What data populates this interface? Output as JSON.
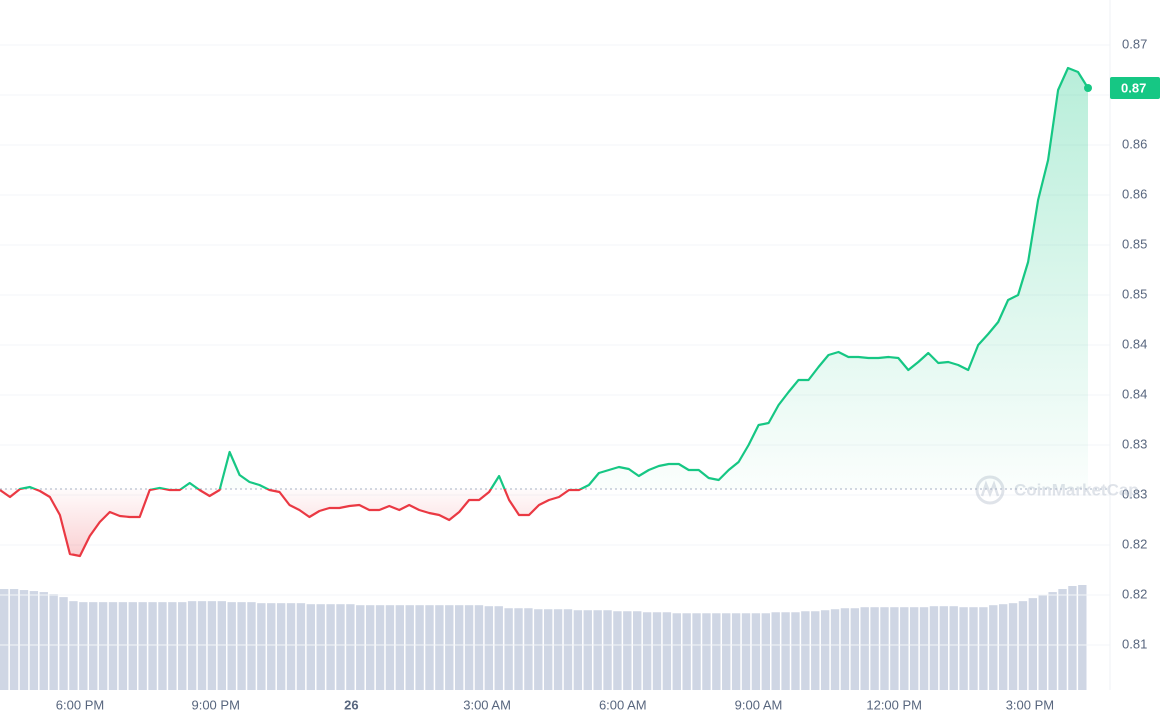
{
  "chart_data": {
    "type": "line",
    "watermark": "CoinMarketCap",
    "last_price_label": "0.87",
    "x_labels": [
      "6:00 PM",
      "9:00 PM",
      "26",
      "3:00 AM",
      "6:00 AM",
      "9:00 AM",
      "12:00 PM",
      "3:00 PM"
    ],
    "baseline": 0.8256,
    "up_color": "#16c784",
    "down_color": "#ea3943",
    "ylim": [
      0.8055,
      0.8745
    ],
    "yticks": [
      0.81,
      {
        "value": 0.815,
        "label": "0.82"
      },
      0.82,
      {
        "value": 0.825,
        "label": "0.83"
      },
      0.83,
      {
        "value": 0.835,
        "label": "0.84"
      },
      0.84,
      {
        "value": 0.845,
        "label": "0.85"
      },
      0.85,
      {
        "value": 0.855,
        "label": "0.86"
      },
      0.86,
      {
        "value": 0.865,
        "label": "0.87"
      },
      0.87
    ],
    "grid": true,
    "values": [
      0.8255,
      0.8248,
      0.8256,
      0.8258,
      0.8254,
      0.8248,
      0.823,
      0.8191,
      0.8189,
      0.8209,
      0.8223,
      0.8233,
      0.8229,
      0.8228,
      0.8228,
      0.8255,
      0.8257,
      0.8255,
      0.8255,
      0.8262,
      0.8255,
      0.8249,
      0.8255,
      0.8293,
      0.827,
      0.8263,
      0.826,
      0.8255,
      0.8253,
      0.824,
      0.8235,
      0.8228,
      0.8234,
      0.8237,
      0.8237,
      0.8239,
      0.824,
      0.8235,
      0.8235,
      0.8239,
      0.8235,
      0.824,
      0.8235,
      0.8232,
      0.823,
      0.8225,
      0.8233,
      0.8245,
      0.8245,
      0.8253,
      0.8269,
      0.8245,
      0.823,
      0.823,
      0.824,
      0.8245,
      0.8248,
      0.8255,
      0.8255,
      0.826,
      0.8272,
      0.8275,
      0.8278,
      0.8276,
      0.8269,
      0.8275,
      0.8279,
      0.8281,
      0.8281,
      0.8275,
      0.8275,
      0.8267,
      0.8265,
      0.8275,
      0.8283,
      0.83,
      0.832,
      0.8322,
      0.834,
      0.8353,
      0.8365,
      0.8365,
      0.8378,
      0.839,
      0.8393,
      0.8388,
      0.8388,
      0.8387,
      0.8387,
      0.8388,
      0.8387,
      0.8375,
      0.8383,
      0.8392,
      0.8382,
      0.8383,
      0.838,
      0.8375,
      0.84,
      0.8411,
      0.8423,
      0.8445,
      0.845,
      0.8483,
      0.8545,
      0.8585,
      0.8655,
      0.8677,
      0.8673,
      0.8657
    ],
    "volume": {
      "color": "#cfd6e4",
      "values": [
        100,
        100,
        99,
        98,
        97,
        95,
        92,
        88,
        87,
        87,
        87,
        87,
        87,
        87,
        87,
        87,
        87,
        87,
        87,
        88,
        88,
        88,
        88,
        87,
        87,
        87,
        86,
        86,
        86,
        86,
        86,
        85,
        85,
        85,
        85,
        85,
        84,
        84,
        84,
        84,
        84,
        84,
        84,
        84,
        84,
        84,
        84,
        84,
        84,
        83,
        83,
        81,
        81,
        81,
        80,
        80,
        80,
        80,
        79,
        79,
        79,
        79,
        78,
        78,
        78,
        77,
        77,
        77,
        76,
        76,
        76,
        76,
        76,
        76,
        76,
        76,
        76,
        76,
        77,
        77,
        77,
        78,
        78,
        79,
        80,
        81,
        81,
        82,
        82,
        82,
        82,
        82,
        82,
        82,
        83,
        83,
        83,
        82,
        82,
        82,
        84,
        85,
        86,
        88,
        91,
        94,
        97,
        100,
        103,
        104
      ]
    }
  }
}
